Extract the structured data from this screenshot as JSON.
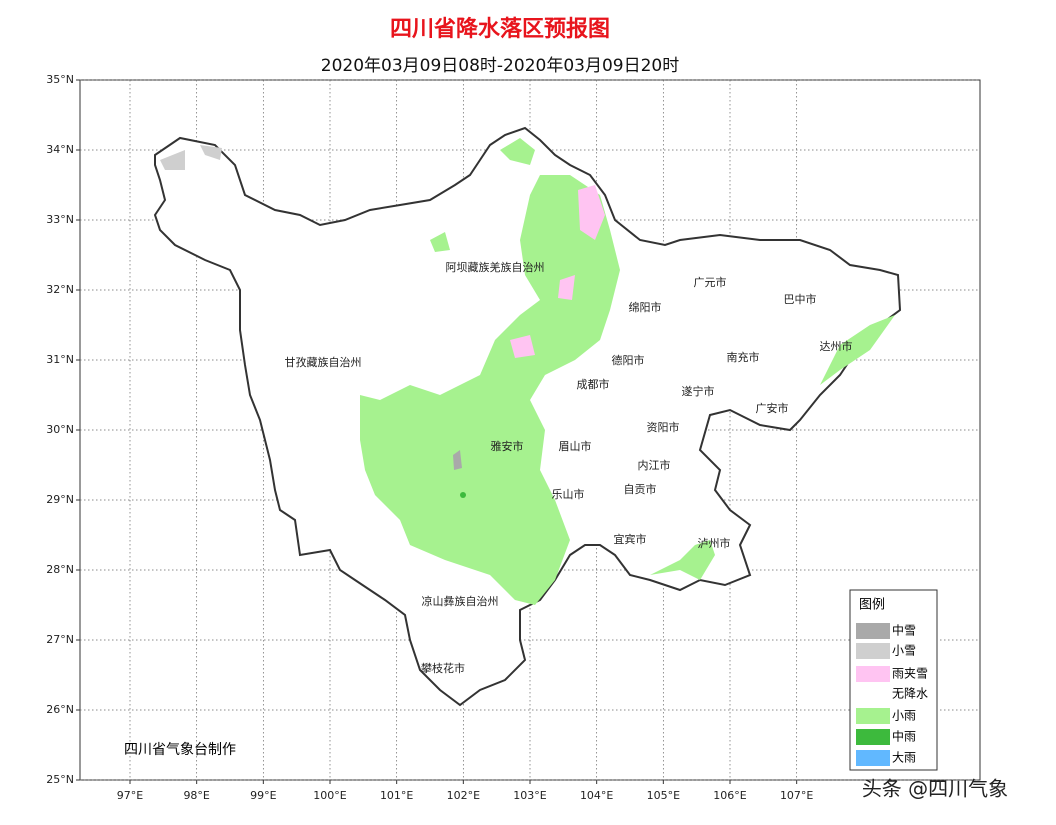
{
  "header": {
    "title": "四川省降水落区预报图",
    "subtitle": "2020年03月09日08时-2020年03月09日20时"
  },
  "map": {
    "xlim": [
      96.25,
      109.75
    ],
    "ylim": [
      25,
      35
    ],
    "xticks": [
      {
        "value": 97,
        "label": "97°E"
      },
      {
        "value": 98,
        "label": "98°E"
      },
      {
        "value": 99,
        "label": "99°E"
      },
      {
        "value": 100,
        "label": "100°E"
      },
      {
        "value": 101,
        "label": "101°E"
      },
      {
        "value": 102,
        "label": "102°E"
      },
      {
        "value": 103,
        "label": "103°E"
      },
      {
        "value": 104,
        "label": "104°E"
      },
      {
        "value": 105,
        "label": "105°E"
      },
      {
        "value": 106,
        "label": "106°E"
      },
      {
        "value": 107,
        "label": "107°E"
      }
    ],
    "yticks": [
      {
        "value": 25,
        "label": "25°N"
      },
      {
        "value": 26,
        "label": "26°N"
      },
      {
        "value": 27,
        "label": "27°N"
      },
      {
        "value": 28,
        "label": "28°N"
      },
      {
        "value": 29,
        "label": "29°N"
      },
      {
        "value": 30,
        "label": "30°N"
      },
      {
        "value": 31,
        "label": "31°N"
      },
      {
        "value": 32,
        "label": "32°N"
      },
      {
        "value": 33,
        "label": "33°N"
      },
      {
        "value": 34,
        "label": "34°N"
      },
      {
        "value": 35,
        "label": "35°N"
      }
    ],
    "regions": [
      "阿坝藏族羌族自治州",
      "甘孜藏族自治州",
      "广元市",
      "巴中市",
      "绵阳市",
      "达州市",
      "德阳市",
      "南充市",
      "成都市",
      "遂宁市",
      "广安市",
      "资阳市",
      "雅安市",
      "眉山市",
      "内江市",
      "自贡市",
      "乐山市",
      "宜宾市",
      "泸州市",
      "凉山彝族自治州",
      "攀枝花市"
    ]
  },
  "legend": {
    "title": "图例",
    "items": [
      {
        "label": "中雪",
        "color": "#a9a9a9"
      },
      {
        "label": "小雪",
        "color": "#cfcfcf"
      },
      {
        "label": "雨夹雪",
        "color": "#ffc4f2"
      },
      {
        "label": "无降水",
        "color": "#ffffff"
      },
      {
        "label": "小雨",
        "color": "#a6f28f"
      },
      {
        "label": "中雨",
        "color": "#3dba3d"
      },
      {
        "label": "大雨",
        "color": "#61b8ff"
      }
    ]
  },
  "credit": "四川省气象台制作",
  "watermark": "头条 @四川气象"
}
